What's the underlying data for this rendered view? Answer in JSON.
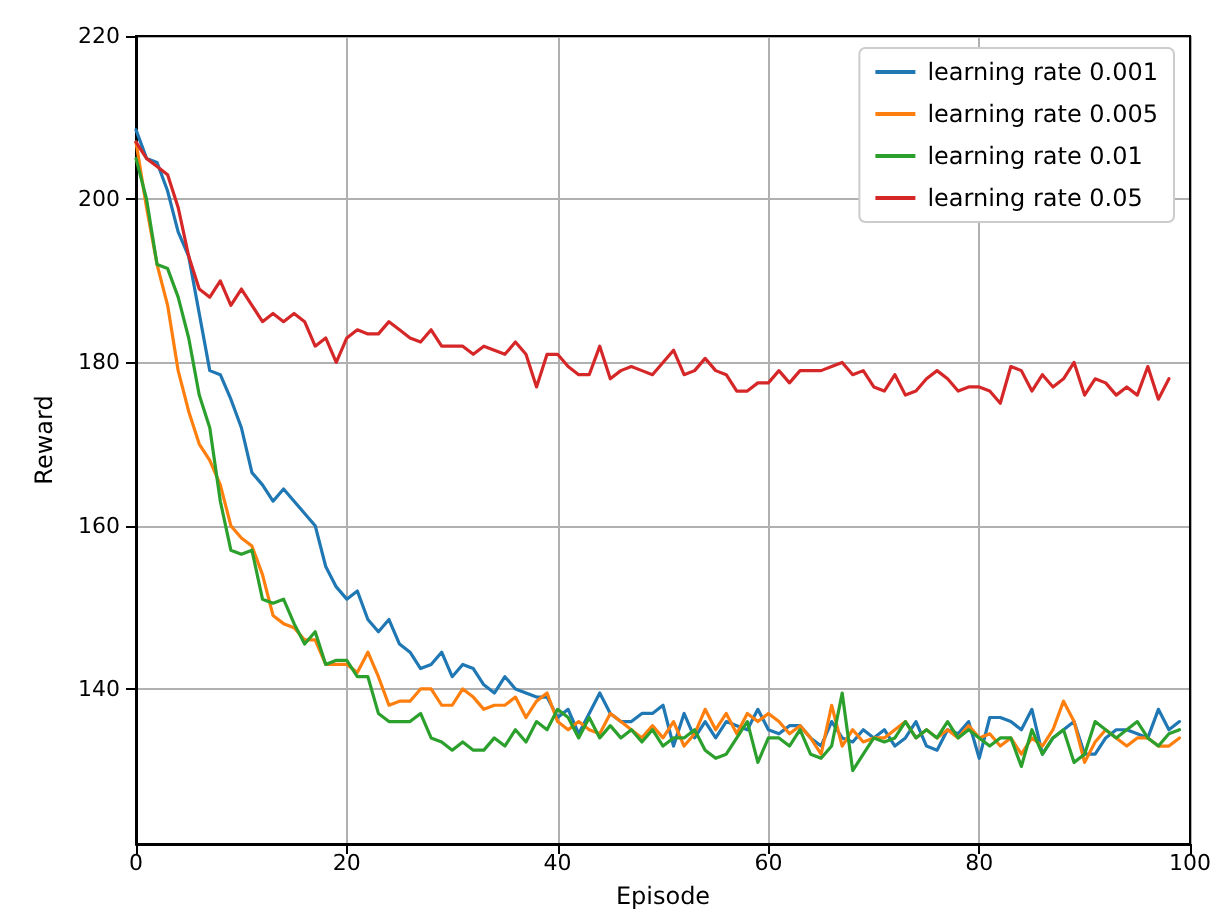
{
  "chart_data": {
    "type": "line",
    "xlabel": "Episode",
    "ylabel": "Reward",
    "xlim": [
      0,
      100
    ],
    "xticks": [
      0,
      20,
      40,
      60,
      80,
      100
    ],
    "ylim": [
      121,
      220
    ],
    "yticks": [
      140,
      160,
      180,
      200,
      220
    ],
    "grid": true,
    "legend": "top right",
    "marker": "none",
    "line_style": "solid",
    "x": [
      0,
      1,
      2,
      3,
      4,
      5,
      6,
      7,
      8,
      9,
      10,
      11,
      12,
      13,
      14,
      15,
      16,
      17,
      18,
      19,
      20,
      21,
      22,
      23,
      24,
      25,
      26,
      27,
      28,
      29,
      30,
      31,
      32,
      33,
      34,
      35,
      36,
      37,
      38,
      39,
      40,
      41,
      42,
      43,
      44,
      45,
      46,
      47,
      48,
      49,
      50,
      51,
      52,
      53,
      54,
      55,
      56,
      57,
      58,
      59,
      60,
      61,
      62,
      63,
      64,
      65,
      66,
      67,
      68,
      69,
      70,
      71,
      72,
      73,
      74,
      75,
      76,
      77,
      78,
      79,
      80,
      81,
      82,
      83,
      84,
      85,
      86,
      87,
      88,
      89,
      90,
      91,
      92,
      93,
      94,
      95,
      96,
      97,
      98,
      99
    ],
    "series": [
      {
        "name": "learning rate 0.001",
        "color": "#1f77b4",
        "values": [
          208.5,
          205,
          204.5,
          201,
          196,
          193,
          186,
          179,
          178.5,
          175.5,
          172,
          166.5,
          165,
          163,
          164.5,
          163,
          161.5,
          160,
          155,
          152.5,
          151,
          152,
          148.5,
          147,
          148.5,
          145.5,
          144.5,
          142.5,
          143,
          144.5,
          141.5,
          143,
          142.5,
          140.5,
          139.5,
          141.5,
          140,
          139.5,
          139,
          139,
          136.5,
          137.5,
          134.5,
          137,
          139.5,
          137,
          136,
          136,
          137,
          137,
          138,
          133,
          137,
          134,
          136,
          134,
          136,
          135.5,
          135,
          137.5,
          135,
          134.5,
          135.5,
          135.5,
          134,
          133,
          136,
          134,
          133.5,
          135,
          134,
          135,
          133,
          134,
          136,
          133,
          132.5,
          135,
          134.5,
          136,
          131.5,
          136.5,
          136.5,
          136,
          135,
          137.5,
          132,
          134,
          135,
          136,
          132,
          132,
          134,
          135,
          135,
          134.5,
          134,
          137.5,
          135,
          136
        ]
      },
      {
        "name": "learning rate 0.005",
        "color": "#ff7f0e",
        "values": [
          207,
          199,
          192,
          187,
          179,
          174,
          170,
          168,
          165,
          160,
          158.5,
          157.5,
          154,
          149,
          148,
          147.5,
          146,
          146,
          143,
          143,
          143,
          142,
          144.5,
          141.5,
          138,
          138.5,
          138.5,
          140,
          140,
          138,
          138,
          140,
          139,
          137.5,
          138,
          138,
          139,
          136.5,
          138.5,
          139.5,
          136,
          135,
          136,
          135,
          134.5,
          137,
          136,
          135,
          134,
          135.5,
          134,
          136,
          133,
          134.5,
          137.5,
          135,
          137,
          134.5,
          137,
          136,
          137,
          136,
          134.5,
          135.5,
          134,
          132,
          138,
          133,
          135,
          133.5,
          134,
          134,
          135,
          136,
          134,
          135,
          134,
          135,
          134,
          135.5,
          134,
          134.5,
          133,
          134,
          132,
          134,
          133,
          135,
          138.5,
          136,
          131,
          133.5,
          135,
          134,
          133,
          134,
          134,
          133,
          133,
          134
        ]
      },
      {
        "name": "learning rate 0.01",
        "color": "#2ca02c",
        "values": [
          205,
          200,
          192,
          191.5,
          188,
          183,
          176,
          172,
          163,
          157,
          156.5,
          157,
          151,
          150.5,
          151,
          148,
          145.5,
          147,
          143,
          143.5,
          143.5,
          141.5,
          141.5,
          137,
          136,
          136,
          136,
          137,
          134,
          133.5,
          132.5,
          133.5,
          132.5,
          132.5,
          134,
          133,
          135,
          133.5,
          136,
          135,
          137.5,
          136.5,
          134,
          136.5,
          134,
          135.5,
          134,
          135,
          133.5,
          135,
          133,
          134,
          134,
          135,
          132.5,
          131.5,
          132,
          134,
          136,
          131,
          134,
          134,
          133,
          135,
          132,
          131.5,
          133,
          139.5,
          130,
          132,
          134,
          133.5,
          134,
          136,
          134,
          135,
          134,
          136,
          134,
          135,
          134,
          133,
          134,
          134,
          130.5,
          135,
          132,
          134,
          135,
          131,
          132,
          136,
          135,
          134,
          135,
          136,
          134,
          133,
          134.5,
          135
        ]
      },
      {
        "name": "learning rate 0.05",
        "color": "#d62728",
        "values": [
          207,
          205,
          204,
          203,
          199,
          193,
          189,
          188,
          190,
          187,
          189,
          187,
          185,
          186,
          185,
          186,
          185,
          182,
          183,
          180,
          183,
          184,
          183.5,
          183.5,
          185,
          184,
          183,
          182.5,
          184,
          182,
          182,
          182,
          181,
          182,
          181.5,
          181,
          182.5,
          181,
          177,
          181,
          181,
          179.5,
          178.5,
          178.5,
          182,
          178,
          179,
          179.5,
          179,
          178.5,
          180,
          181.5,
          178.5,
          179,
          180.5,
          179,
          178.5,
          176.5,
          176.5,
          177.5,
          177.5,
          179,
          177.5,
          179,
          179,
          179,
          179.5,
          180,
          178.5,
          179,
          177,
          176.5,
          178.5,
          176,
          176.5,
          178,
          179,
          178,
          176.5,
          177,
          177,
          176.5,
          175,
          179.5,
          179,
          176.5,
          178.5,
          177,
          178,
          180,
          176,
          178,
          177.5,
          176,
          177,
          176,
          179.5,
          175.5,
          178,
          null
        ]
      }
    ]
  }
}
